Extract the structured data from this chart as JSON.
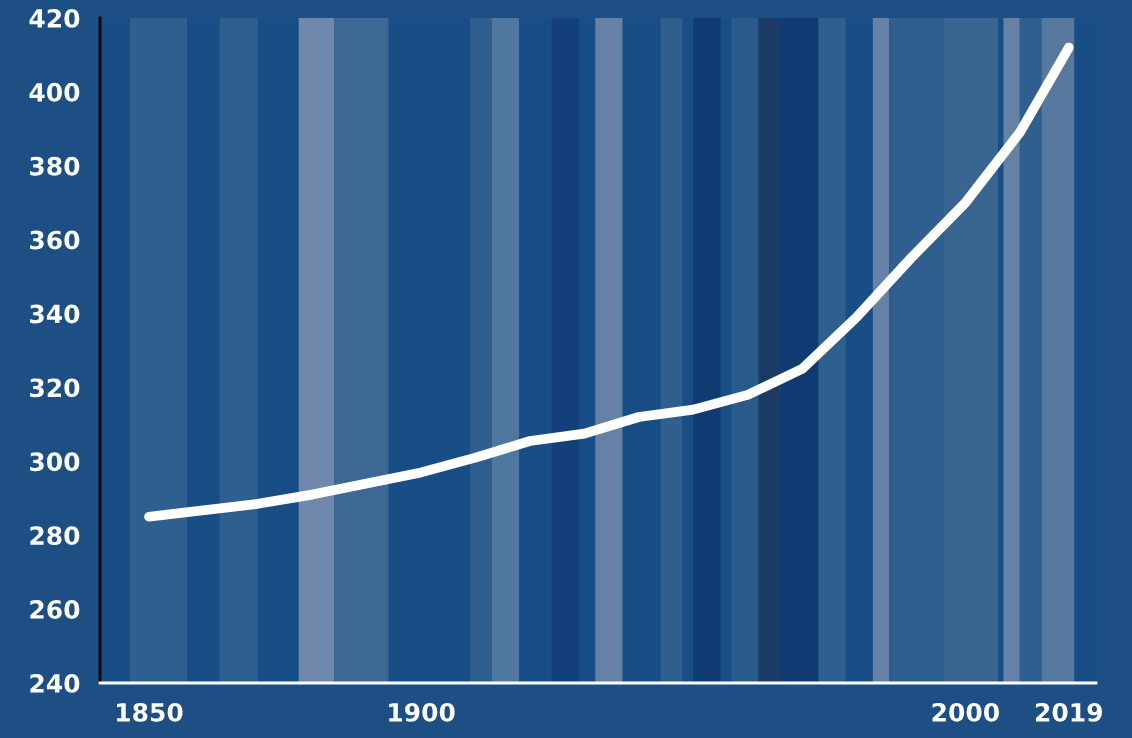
{
  "chart_data": {
    "type": "line",
    "x": [
      1850,
      1870,
      1880,
      1890,
      1900,
      1910,
      1920,
      1930,
      1940,
      1950,
      1960,
      1970,
      1980,
      1990,
      2000,
      2010,
      2019
    ],
    "series": [
      {
        "color": "#ffffff",
        "values": [
          285,
          288.5,
          291,
          294,
          297,
          301,
          305.5,
          307.5,
          312,
          314,
          318,
          325,
          339,
          355,
          370,
          389,
          412
        ]
      }
    ],
    "xlim": [
      1841,
      2024
    ],
    "xticks": [
      1850,
      1900,
      2000,
      2019
    ],
    "ylim": [
      240,
      420
    ],
    "yticks": [
      240,
      260,
      280,
      300,
      320,
      340,
      360,
      380,
      400,
      420
    ],
    "grid": false,
    "marker": "none",
    "line_style": "solid",
    "bands": [
      {
        "axis": "x",
        "from": 1846.5,
        "to": 1857,
        "color": "#2f5f8e"
      },
      {
        "axis": "x",
        "from": 1863,
        "to": 1870,
        "color": "#2f5f8e"
      },
      {
        "axis": "x",
        "from": 1877.5,
        "to": 1884,
        "color": "#6f88ab"
      },
      {
        "axis": "x",
        "from": 1884,
        "to": 1894,
        "color": "#3d6894"
      },
      {
        "axis": "x",
        "from": 1909,
        "to": 1913,
        "color": "#2f5f8e"
      },
      {
        "axis": "x",
        "from": 1913,
        "to": 1918,
        "color": "#4f77a0"
      },
      {
        "axis": "x",
        "from": 1924,
        "to": 1929,
        "color": "#133f7a"
      },
      {
        "axis": "x",
        "from": 1932,
        "to": 1937,
        "color": "#6581a6"
      },
      {
        "axis": "x",
        "from": 1944,
        "to": 1948,
        "color": "#2f5f8e"
      },
      {
        "axis": "x",
        "from": 1950,
        "to": 1955,
        "color": "#0f3a72"
      },
      {
        "axis": "x",
        "from": 1957,
        "to": 1962,
        "color": "#2a5a8a"
      },
      {
        "axis": "x",
        "from": 1962,
        "to": 1966,
        "color": "#1b3a66"
      },
      {
        "axis": "x",
        "from": 1966,
        "to": 1973,
        "color": "#0f3a72"
      },
      {
        "axis": "x",
        "from": 1973,
        "to": 1978,
        "color": "#2f5f8e"
      },
      {
        "axis": "x",
        "from": 1983,
        "to": 1986,
        "color": "#6581a6"
      },
      {
        "axis": "x",
        "from": 1986,
        "to": 1996,
        "color": "#2f5f8e"
      },
      {
        "axis": "x",
        "from": 1996,
        "to": 2006,
        "color": "#3a6590"
      },
      {
        "axis": "x",
        "from": 2007,
        "to": 2010,
        "color": "#6581a6"
      },
      {
        "axis": "x",
        "from": 2010,
        "to": 2014,
        "color": "#2f5f8e"
      },
      {
        "axis": "x",
        "from": 2014,
        "to": 2020,
        "color": "#58799f"
      }
    ]
  }
}
